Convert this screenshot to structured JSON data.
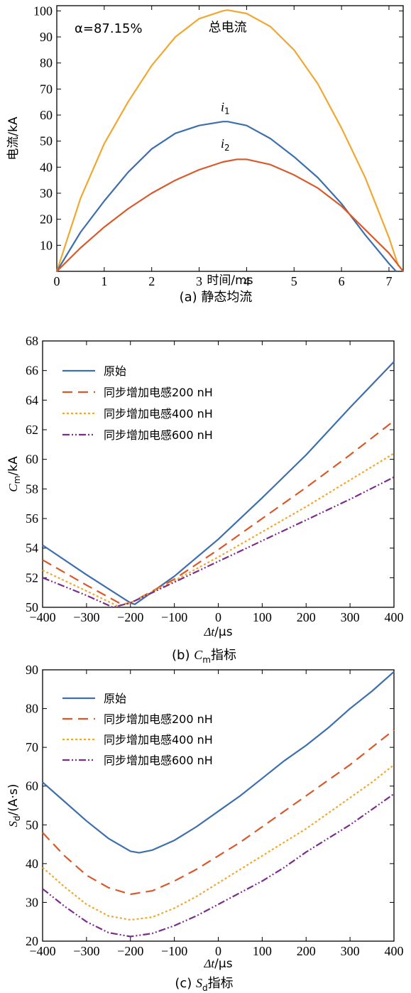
{
  "chart_data": [
    {
      "type": "line",
      "caption_prefix": "(a) ",
      "caption": "静态均流",
      "xlabel": "时间/ms",
      "ylabel": "电流/kA",
      "xlim": [
        0,
        7.3
      ],
      "ylim": [
        0,
        102
      ],
      "xticks": [
        "0",
        "1",
        "2",
        "3",
        "4",
        "5",
        "6",
        "7"
      ],
      "yticks": [
        "10",
        "20",
        "30",
        "40",
        "50",
        "60",
        "70",
        "80",
        "90",
        "100"
      ],
      "grid": false,
      "annotation_alpha": "α=87.15%",
      "series": [
        {
          "name": "总电流",
          "color": "#f0a830",
          "dash": "",
          "x": [
            0,
            0.5,
            1,
            1.5,
            2,
            2.5,
            3,
            3.5,
            3.6,
            4,
            4.5,
            5,
            5.5,
            6,
            6.5,
            7,
            7.2
          ],
          "y": [
            0,
            28,
            49,
            65,
            79,
            90,
            97,
            100,
            100.3,
            99,
            94,
            85,
            72,
            55,
            36,
            13,
            2
          ]
        },
        {
          "name": "i",
          "sub": "1",
          "color": "#3e6fad",
          "dash": "",
          "x": [
            0,
            0.5,
            1,
            1.5,
            2,
            2.5,
            3,
            3.5,
            3.6,
            4,
            4.5,
            5,
            5.5,
            6,
            6.5,
            7,
            7.15
          ],
          "y": [
            0,
            15,
            27,
            38,
            47,
            53,
            56,
            57.5,
            57.5,
            56,
            51,
            44,
            36,
            26,
            14,
            3,
            0
          ]
        },
        {
          "name": "i",
          "sub": "2",
          "color": "#d85a2b",
          "dash": "",
          "x": [
            0,
            0.5,
            1,
            1.5,
            2,
            2.5,
            3,
            3.5,
            3.8,
            4,
            4.5,
            5,
            5.5,
            6,
            6.5,
            7,
            7.3
          ],
          "y": [
            0,
            9,
            17,
            24,
            30,
            35,
            39,
            42,
            43,
            43,
            41,
            37,
            32,
            25,
            16,
            7,
            0
          ]
        }
      ]
    },
    {
      "type": "line",
      "caption_prefix": "(b) ",
      "caption": "指标",
      "caption_var": "C",
      "caption_sub": "m",
      "xlabel": "/μs",
      "xlabel_prefix": "Δ",
      "xlabel_var": "t",
      "ylabel": "/kA",
      "ylabel_var": "C",
      "ylabel_sub": "m",
      "xlim": [
        -400,
        400
      ],
      "ylim": [
        50,
        68
      ],
      "xticks": [
        "−400",
        "−300",
        "−200",
        "−100",
        "0",
        "100",
        "200",
        "300",
        "400"
      ],
      "yticks": [
        "50",
        "52",
        "54",
        "56",
        "58",
        "60",
        "62",
        "64",
        "66",
        "68"
      ],
      "legend_position": "top-left",
      "grid": false,
      "series": [
        {
          "name": "原始",
          "color": "#3e6fad",
          "dash": "",
          "x": [
            -400,
            -300,
            -200,
            -190,
            -100,
            0,
            100,
            200,
            300,
            400
          ],
          "y": [
            54.2,
            52.2,
            50.3,
            50.2,
            52.1,
            54.6,
            57.4,
            60.3,
            63.5,
            66.6
          ]
        },
        {
          "name": "同步增加电感200 nH",
          "color": "#d85a2b",
          "dash": "14,8",
          "x": [
            -400,
            -300,
            -220,
            -200,
            -100,
            0,
            100,
            200,
            300,
            400
          ],
          "y": [
            53.2,
            51.5,
            50.2,
            50.3,
            51.9,
            53.9,
            56.0,
            58.1,
            60.3,
            62.6
          ]
        },
        {
          "name": "同步增加电感400 nH",
          "color": "#f0a830",
          "dash": "3,3",
          "x": [
            -400,
            -300,
            -230,
            -200,
            -100,
            0,
            100,
            200,
            300,
            400
          ],
          "y": [
            52.5,
            51.1,
            50.1,
            50.3,
            51.8,
            53.4,
            55.1,
            56.8,
            58.6,
            60.4
          ]
        },
        {
          "name": "同步增加电感600 nH",
          "color": "#7b2d8b",
          "dash": "10,3,2,3,2,3",
          "x": [
            -400,
            -300,
            -240,
            -200,
            -100,
            0,
            100,
            200,
            300,
            400
          ],
          "y": [
            52.0,
            50.8,
            50.0,
            50.3,
            51.7,
            53.1,
            54.5,
            55.9,
            57.3,
            58.8
          ]
        }
      ]
    },
    {
      "type": "line",
      "caption_prefix": "(c) ",
      "caption": "指标",
      "caption_var": "S",
      "caption_sub": "d",
      "xlabel": "/μs",
      "xlabel_prefix": "Δ",
      "xlabel_var": "t",
      "ylabel": "/(A·s)",
      "ylabel_var": "S",
      "ylabel_sub": "d",
      "xlim": [
        -400,
        400
      ],
      "ylim": [
        20,
        90
      ],
      "xticks": [
        "−400",
        "−300",
        "−200",
        "−100",
        "0",
        "100",
        "200",
        "300",
        "400"
      ],
      "yticks": [
        "20",
        "30",
        "40",
        "50",
        "60",
        "70",
        "80",
        "90"
      ],
      "legend_position": "top-left",
      "grid": false,
      "series": [
        {
          "name": "原始",
          "color": "#3e6fad",
          "dash": "",
          "x": [
            -400,
            -350,
            -300,
            -250,
            -200,
            -180,
            -150,
            -100,
            -50,
            0,
            50,
            100,
            150,
            200,
            250,
            300,
            350,
            400
          ],
          "y": [
            61,
            56,
            51,
            46.5,
            43.2,
            42.8,
            43.5,
            46,
            49.5,
            53.5,
            57.5,
            62,
            66.5,
            70.5,
            75,
            80,
            84.5,
            89.5
          ]
        },
        {
          "name": "同步增加电感200 nH",
          "color": "#d85a2b",
          "dash": "14,8",
          "x": [
            -400,
            -350,
            -300,
            -250,
            -200,
            -150,
            -100,
            -50,
            0,
            50,
            100,
            150,
            200,
            250,
            300,
            350,
            400
          ],
          "y": [
            48,
            42,
            37,
            33.8,
            32.1,
            33,
            35.5,
            38.5,
            42,
            45.5,
            49.5,
            53.5,
            57.5,
            61.5,
            65.5,
            70,
            74.5
          ]
        },
        {
          "name": "同步增加电感400 nH",
          "color": "#f0a830",
          "dash": "3,3",
          "x": [
            -400,
            -350,
            -300,
            -250,
            -200,
            -150,
            -100,
            -50,
            0,
            50,
            100,
            150,
            200,
            250,
            300,
            350,
            400
          ],
          "y": [
            39,
            34,
            29.5,
            26.5,
            25.5,
            26.2,
            28.5,
            31.5,
            35,
            38.5,
            42,
            45.5,
            49,
            53,
            57,
            61,
            65.5
          ]
        },
        {
          "name": "同步增加电感600 nH",
          "color": "#7b2d8b",
          "dash": "10,3,2,3,2,3",
          "x": [
            -400,
            -350,
            -300,
            -250,
            -200,
            -150,
            -100,
            -50,
            0,
            50,
            100,
            150,
            200,
            250,
            300,
            350,
            400
          ],
          "y": [
            33.5,
            29,
            25,
            22.2,
            21.2,
            22,
            24,
            26.5,
            29.5,
            32.5,
            35.5,
            39,
            43,
            46.5,
            50,
            54,
            58
          ]
        }
      ]
    }
  ]
}
